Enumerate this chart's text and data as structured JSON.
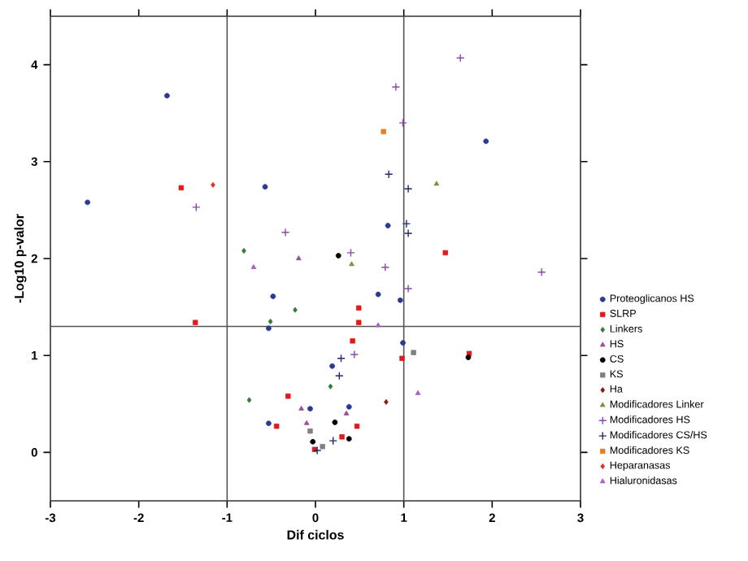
{
  "chart_data": {
    "type": "scatter",
    "xlabel": "Dif ciclos",
    "ylabel": "-Log10 p-valor",
    "xlim": [
      -3,
      3
    ],
    "ylim": [
      -0.5,
      4.5
    ],
    "xticks": [
      -3,
      -2,
      -1,
      0,
      1,
      2,
      3
    ],
    "yticks": [
      0,
      1,
      2,
      3,
      4
    ],
    "grid": false,
    "legend": "right",
    "ref_lines": [
      {
        "axis": "x",
        "value": -1,
        "color": "#555555"
      },
      {
        "axis": "x",
        "value": 1,
        "color": "#555555"
      },
      {
        "axis": "y",
        "value": 1.3,
        "color": "#555555"
      }
    ],
    "series": [
      {
        "name": "Proteoglicanos HS",
        "color": "#2b3990",
        "marker": "circle",
        "x": [
          -1.68,
          -2.58,
          -0.57,
          1.93,
          0.82,
          0.71,
          0.96,
          0.99,
          0.19,
          -0.06,
          0.38,
          -0.48,
          -0.53,
          -0.53
        ],
        "values": [
          3.68,
          2.58,
          2.74,
          3.21,
          2.34,
          1.63,
          1.57,
          1.13,
          0.89,
          0.45,
          0.47,
          1.61,
          1.28,
          0.3
        ]
      },
      {
        "name": "SLRP",
        "color": "#e31a1c",
        "marker": "square",
        "x": [
          -1.52,
          1.47,
          0.49,
          0.49,
          0.42,
          0.98,
          1.74,
          0.47,
          0.3,
          -1.36,
          -0.31,
          -0.44,
          -0.01
        ],
        "values": [
          2.73,
          2.06,
          1.49,
          1.34,
          1.15,
          0.97,
          1.02,
          0.27,
          0.16,
          1.34,
          0.58,
          0.27,
          0.03
        ]
      },
      {
        "name": "Linkers",
        "color": "#2e7d32",
        "marker": "diamond",
        "x": [
          -0.81,
          -0.23,
          0.17,
          -0.51,
          -0.75
        ],
        "values": [
          2.08,
          1.47,
          0.68,
          1.35,
          0.54
        ]
      },
      {
        "name": "HS",
        "color": "#9b4f96",
        "marker": "triangle",
        "x": [
          -0.19,
          -0.16,
          0.35,
          -0.1
        ],
        "values": [
          2.0,
          0.45,
          0.4,
          0.3
        ]
      },
      {
        "name": "CS",
        "color": "#000000",
        "marker": "circle",
        "x": [
          0.26,
          1.73,
          0.22,
          0.38,
          -0.03
        ],
        "values": [
          2.03,
          0.98,
          0.31,
          0.14,
          0.11
        ]
      },
      {
        "name": "KS",
        "color": "#808080",
        "marker": "square",
        "x": [
          1.11,
          0.08,
          -0.06
        ],
        "values": [
          1.03,
          0.06,
          0.22
        ]
      },
      {
        "name": "Ha",
        "color": "#8b1a1a",
        "marker": "diamond",
        "x": [
          0.8
        ],
        "values": [
          0.52
        ]
      },
      {
        "name": "Modificadores Linker",
        "color": "#8a8a3a",
        "marker": "triangle",
        "x": [
          1.37,
          0.41
        ],
        "values": [
          2.77,
          1.94
        ]
      },
      {
        "name": "Modificadores HS",
        "color": "#8e44ad",
        "marker": "cross",
        "x": [
          1.64,
          0.91,
          0.99,
          -1.35,
          -0.34,
          0.4,
          0.79,
          2.56,
          1.05,
          0.44
        ],
        "values": [
          4.07,
          3.77,
          3.4,
          2.53,
          2.27,
          2.06,
          1.91,
          1.86,
          1.69,
          1.01
        ]
      },
      {
        "name": "Modificadores CS/HS",
        "color": "#1f2a6b",
        "marker": "cross",
        "x": [
          0.83,
          1.05,
          1.03,
          1.05,
          0.29,
          0.27,
          0.2,
          0.02
        ],
        "values": [
          2.87,
          2.72,
          2.36,
          2.26,
          0.97,
          0.79,
          0.12,
          0.02
        ]
      },
      {
        "name": "Modificadores KS",
        "color": "#e67e22",
        "marker": "square",
        "x": [
          0.77
        ],
        "values": [
          3.31
        ]
      },
      {
        "name": "Heparanasas",
        "color": "#e0301e",
        "marker": "diamond",
        "x": [
          -1.16
        ],
        "values": [
          2.76
        ]
      },
      {
        "name": "Hialuronidasas",
        "color": "#b05cc8",
        "marker": "triangle",
        "x": [
          -0.7,
          0.71,
          1.16
        ],
        "values": [
          1.91,
          1.31,
          0.61
        ]
      }
    ]
  }
}
